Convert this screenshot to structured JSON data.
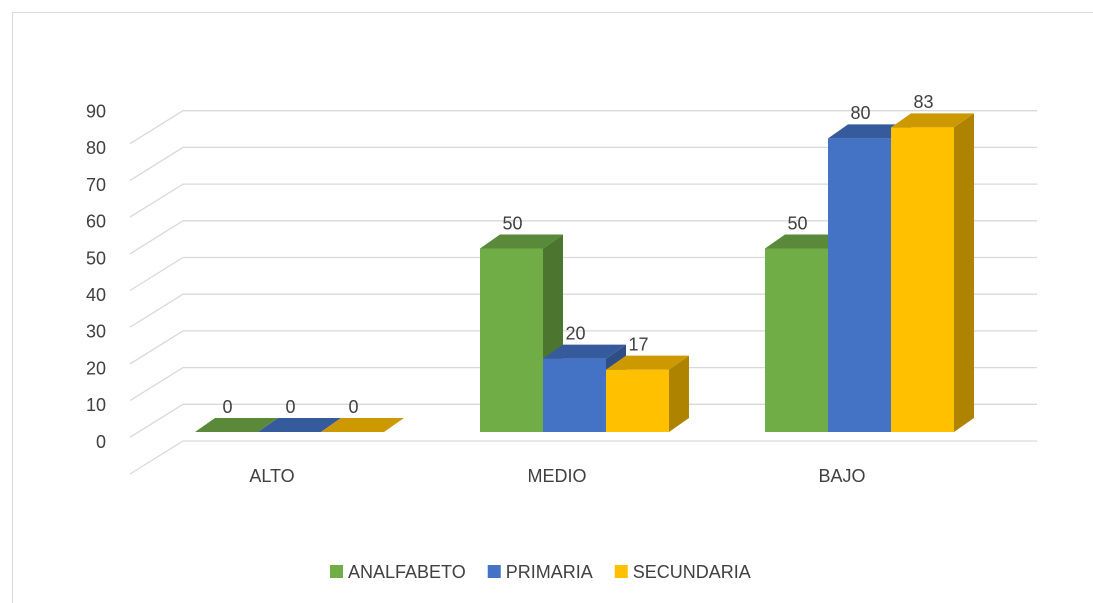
{
  "chart_data": {
    "type": "bar3d",
    "categories": [
      "ALTO",
      "MEDIO",
      "BAJO"
    ],
    "series": [
      {
        "name": "ANALFABETO",
        "color": "#70ad47",
        "values": [
          0,
          50,
          50
        ]
      },
      {
        "name": "PRIMARIA",
        "color": "#4472c4",
        "values": [
          0,
          20,
          80
        ]
      },
      {
        "name": "SECUNDARIA",
        "color": "#ffc000",
        "values": [
          0,
          17,
          83
        ]
      }
    ],
    "ylim": [
      0,
      100
    ],
    "yticks": [
      0,
      10,
      20,
      30,
      40,
      50,
      60,
      70,
      80,
      90
    ],
    "grid": true,
    "legend": "bottom"
  }
}
